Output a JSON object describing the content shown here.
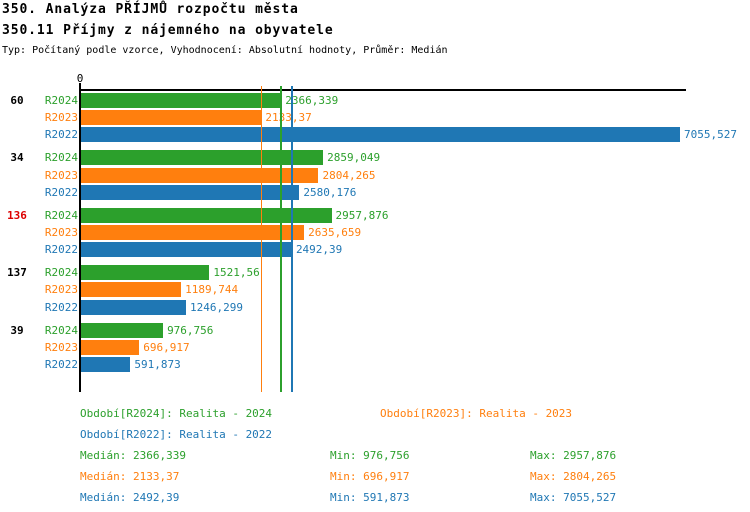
{
  "title": "350. Analýza PŘÍJMŮ rozpočtu města",
  "subtitle": "350.11 Příjmy z nájemného na obyvatele",
  "meta_line": "Typ: Počítaný podle vzorce, Vyhodnocení: Absolutní hodnoty, Průměr: Medián",
  "colors": {
    "r2024": "#2ca02c",
    "r2023": "#ff7f0e",
    "r2022": "#1f77b4",
    "highlight_row": "#dd0000",
    "axis": "#000000",
    "background": "#ffffff"
  },
  "axis": {
    "zero_label": "0"
  },
  "chart_data": {
    "type": "bar",
    "orientation": "horizontal",
    "x_origin": 0,
    "x_max_estimate": 7130,
    "grid": false,
    "series": [
      {
        "key": "R2024",
        "color_key": "r2024"
      },
      {
        "key": "R2023",
        "color_key": "r2023"
      },
      {
        "key": "R2022",
        "color_key": "r2022"
      }
    ],
    "groups": [
      {
        "label": "60",
        "highlighted": false,
        "values": [
          2366.339,
          2133.37,
          7055.527
        ],
        "value_labels": [
          "2366,339",
          "2133,37",
          "7055,527"
        ]
      },
      {
        "label": "34",
        "highlighted": false,
        "values": [
          2859.049,
          2804.265,
          2580.176
        ],
        "value_labels": [
          "2859,049",
          "2804,265",
          "2580,176"
        ]
      },
      {
        "label": "136",
        "highlighted": true,
        "values": [
          2957.876,
          2635.659,
          2492.39
        ],
        "value_labels": [
          "2957,876",
          "2635,659",
          "2492,39"
        ]
      },
      {
        "label": "137",
        "highlighted": false,
        "values": [
          1521.56,
          1189.744,
          1246.299
        ],
        "value_labels": [
          "1521,56",
          "1189,744",
          "1246,299"
        ]
      },
      {
        "label": "39",
        "highlighted": false,
        "values": [
          976.756,
          696.917,
          591.873
        ],
        "value_labels": [
          "976,756",
          "696,917",
          "591,873"
        ]
      }
    ],
    "median_lines": [
      {
        "series": "R2024",
        "value": 2366.339,
        "color_key": "r2024"
      },
      {
        "series": "R2023",
        "value": 2133.37,
        "color_key": "r2023"
      },
      {
        "series": "R2022",
        "value": 2492.39,
        "color_key": "r2022"
      }
    ]
  },
  "legend": {
    "items": [
      {
        "text": "Období[R2024]: Realita - 2024",
        "color_key": "r2024"
      },
      {
        "text": "Období[R2023]: Realita - 2023",
        "color_key": "r2023"
      },
      {
        "text": "Období[R2022]: Realita - 2022",
        "color_key": "r2022"
      }
    ]
  },
  "stats": {
    "rows": [
      {
        "color_key": "r2024",
        "median": "Medián: 2366,339",
        "min": "Min: 976,756",
        "max": "Max: 2957,876"
      },
      {
        "color_key": "r2023",
        "median": "Medián: 2133,37",
        "min": "Min: 696,917",
        "max": "Max: 2804,265"
      },
      {
        "color_key": "r2022",
        "median": "Medián: 2492,39",
        "min": "Min: 591,873",
        "max": "Max: 7055,527"
      }
    ]
  }
}
